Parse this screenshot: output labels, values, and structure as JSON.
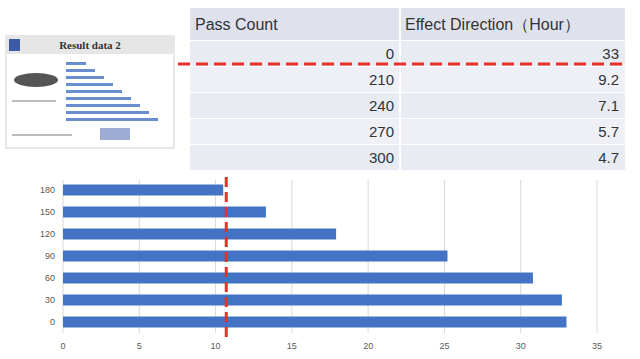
{
  "slide_thumbnail": {
    "title": "Result data 2"
  },
  "table": {
    "header": [
      "Pass Count",
      "Effect Direction（Hour）"
    ],
    "rows": [
      [
        0,
        33
      ],
      [
        210,
        9.2
      ],
      [
        240,
        7.1
      ],
      [
        270,
        5.7
      ],
      [
        300,
        4.7
      ]
    ]
  },
  "chart_data": {
    "type": "bar",
    "orientation": "horizontal",
    "categories": [
      "0",
      "30",
      "60",
      "90",
      "120",
      "150",
      "180"
    ],
    "values": [
      33,
      32.7,
      30.8,
      25.2,
      17.9,
      13.3,
      10.5
    ],
    "color": "#4472c4",
    "xlim": [
      0,
      35
    ],
    "xticks": [
      0,
      5,
      10,
      15,
      20,
      25,
      30,
      35
    ],
    "grid": true,
    "threshold": 10.7
  }
}
